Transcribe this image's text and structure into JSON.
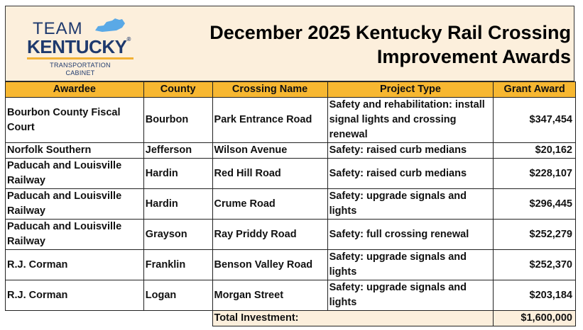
{
  "logo": {
    "line1": "TEAM",
    "line2": "KENTUCKY",
    "reg": "®",
    "sub1": "TRANSPORTATION",
    "sub2": "CABINET"
  },
  "title_line1": "December 2025 Kentucky Rail Crossing",
  "title_line2": "Improvement Awards",
  "columns": [
    "Awardee",
    "County",
    "Crossing Name",
    "Project Type",
    "Grant Award"
  ],
  "rows": [
    {
      "awardee": "Bourbon County Fiscal Court",
      "county": "Bourbon",
      "crossing": "Park Entrance Road",
      "project": "Safety and rehabilitation: install signal lights and crossing renewal",
      "award": "$347,454"
    },
    {
      "awardee": "Norfolk Southern",
      "county": "Jefferson",
      "crossing": "Wilson Avenue",
      "project": "Safety: raised curb medians",
      "award": "$20,162"
    },
    {
      "awardee": "Paducah and Louisville Railway",
      "county": "Hardin",
      "crossing": "Red Hill Road",
      "project": "Safety: raised curb medians",
      "award": "$228,107"
    },
    {
      "awardee": "Paducah and Louisville Railway",
      "county": "Hardin",
      "crossing": "Crume Road",
      "project": "Safety: upgrade signals and lights",
      "award": "$296,445"
    },
    {
      "awardee": "Paducah and Louisville Railway",
      "county": "Grayson",
      "crossing": "Ray Priddy Road",
      "project": "Safety: full crossing renewal",
      "award": "$252,279"
    },
    {
      "awardee": "R.J. Corman",
      "county": "Franklin",
      "crossing": "Benson Valley Road",
      "project": "Safety: upgrade signals and lights",
      "award": "$252,370"
    },
    {
      "awardee": "R.J. Corman",
      "county": "Logan",
      "crossing": "Morgan Street",
      "project": "Safety: upgrade signals and lights",
      "award": "$203,184"
    }
  ],
  "total_label": "Total Investment:",
  "total_value": "$1,600,000",
  "colors": {
    "header_bg": "#fcefdc",
    "column_header_bg": "#f7b731",
    "logo_blue": "#1f3a6e",
    "logo_gold": "#f2b134",
    "kentucky_shape": "#5aa9e6"
  }
}
